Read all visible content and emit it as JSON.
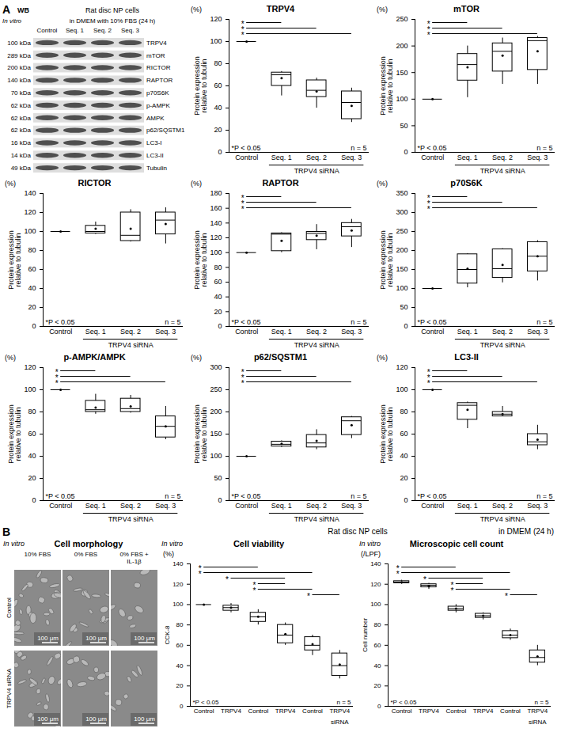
{
  "figure": {
    "panel_A": {
      "letter": "A",
      "western_blot": {
        "label": "WB",
        "header": "Rat disc NP cells",
        "subheader": "in DMEM with 10% FBS (24 h)",
        "context": "In vitro",
        "lanes": [
          "Control",
          "Seq. 1",
          "Seq. 2",
          "Seq. 3"
        ],
        "rows": [
          {
            "kda": "100 kDa",
            "protein": "TRPV4"
          },
          {
            "kda": "289 kDa",
            "protein": "mTOR"
          },
          {
            "kda": "200 kDa",
            "protein": "RICTOR"
          },
          {
            "kda": "140 kDa",
            "protein": "RAPTOR"
          },
          {
            "kda": "70 kDa",
            "protein": "p70S6K"
          },
          {
            "kda": "62 kDa",
            "protein": "p-AMPK"
          },
          {
            "kda": "62 kDa",
            "protein": "AMPK"
          },
          {
            "kda": "62 kDa",
            "protein": "p62/SQSTM1"
          },
          {
            "kda": "16 kDa",
            "protein": "LC3-I"
          },
          {
            "kda": "14 kDa",
            "protein": "LC3-II"
          },
          {
            "kda": "49 kDa",
            "protein": "Tubulin"
          }
        ]
      }
    },
    "panel_B": {
      "letter": "B",
      "header": "Rat disc NP cells",
      "subheader": "in DMEM (24 h)",
      "morphology": {
        "title": "Cell morphology",
        "context": "In vitro",
        "columns": [
          "10% FBS",
          "0% FBS",
          "0% FBS + IL-1β"
        ],
        "rows": [
          "Control",
          "TRPV4 siRNA"
        ],
        "scale_bar": "100 μm"
      }
    }
  },
  "chart_data": [
    {
      "panel": "A",
      "type": "box",
      "title": "TRPV4",
      "ylabel": "Protein expression relative to tubulin",
      "yunit": "(%)",
      "categories": [
        "Control",
        "Seq. 1",
        "Seq. 2",
        "Seq. 3"
      ],
      "group": {
        "label": "TRPV4 siRNA",
        "from": 1,
        "to": 3
      },
      "values": [
        {
          "min": 100,
          "q1": 100,
          "median": 100,
          "q3": 100,
          "max": 100,
          "mean": 100
        },
        {
          "min": 51,
          "q1": 60,
          "median": 70,
          "q3": 72,
          "max": 73,
          "mean": 67
        },
        {
          "min": 40,
          "q1": 50,
          "median": 56,
          "q3": 65,
          "max": 67,
          "mean": 55
        },
        {
          "min": 27,
          "q1": 30,
          "median": 45,
          "q3": 55,
          "max": 58,
          "mean": 42
        }
      ],
      "ylim": [
        0,
        120
      ],
      "yticks": [
        0,
        20,
        40,
        60,
        80,
        100,
        120
      ],
      "comparisons": [
        [
          0,
          1
        ],
        [
          0,
          2
        ],
        [
          0,
          3
        ]
      ],
      "comparison_label": "*",
      "annotations": [
        "*P < 0.05",
        "n = 5"
      ],
      "color": "#ffffff"
    },
    {
      "panel": "A",
      "type": "box",
      "title": "mTOR",
      "ylabel": "Protein expression relative to tubulin",
      "yunit": "(%)",
      "categories": [
        "Control",
        "Seq. 1",
        "Seq. 2",
        "Seq. 3"
      ],
      "group": {
        "label": "TRPV4 siRNA",
        "from": 1,
        "to": 3
      },
      "values": [
        {
          "min": 100,
          "q1": 100,
          "median": 100,
          "q3": 100,
          "max": 100,
          "mean": 100
        },
        {
          "min": 103,
          "q1": 135,
          "median": 165,
          "q3": 185,
          "max": 200,
          "mean": 160
        },
        {
          "min": 128,
          "q1": 152,
          "median": 190,
          "q3": 205,
          "max": 215,
          "mean": 182
        },
        {
          "min": 128,
          "q1": 155,
          "median": 210,
          "q3": 215,
          "max": 218,
          "mean": 190
        }
      ],
      "ylim": [
        0,
        250
      ],
      "yticks": [
        0,
        50,
        100,
        150,
        200,
        250
      ],
      "comparisons": [
        [
          0,
          1
        ],
        [
          0,
          2
        ],
        [
          0,
          3
        ]
      ],
      "comparison_label": "*",
      "annotations": [
        "*P < 0.05",
        "n = 5"
      ],
      "color": "#ffffff"
    },
    {
      "panel": "A",
      "type": "box",
      "title": "RICTOR",
      "ylabel": "Protein expression relative to tubulin",
      "yunit": "(%)",
      "categories": [
        "Control",
        "Seq. 1",
        "Seq. 2",
        "Seq. 3"
      ],
      "group": {
        "label": "TRPV4 siRNA",
        "from": 1,
        "to": 3
      },
      "values": [
        {
          "min": 100,
          "q1": 100,
          "median": 100,
          "q3": 100,
          "max": 100,
          "mean": 100
        },
        {
          "min": 97,
          "q1": 98,
          "median": 100,
          "q3": 106,
          "max": 110,
          "mean": 103
        },
        {
          "min": 89,
          "q1": 90,
          "median": 96,
          "q3": 120,
          "max": 123,
          "mean": 103
        },
        {
          "min": 87,
          "q1": 97,
          "median": 112,
          "q3": 120,
          "max": 125,
          "mean": 108
        }
      ],
      "ylim": [
        0,
        140
      ],
      "yticks": [
        0,
        20,
        40,
        60,
        80,
        100,
        120,
        140
      ],
      "comparisons": [],
      "annotations": [
        "*P < 0.05",
        "n = 5"
      ],
      "color": "#ffffff"
    },
    {
      "panel": "A",
      "type": "box",
      "title": "RAPTOR",
      "ylabel": "Protein expression relative to tubulin",
      "yunit": "(%)",
      "categories": [
        "Control",
        "Seq. 1",
        "Seq. 2",
        "Seq. 3"
      ],
      "group": {
        "label": "TRPV4 siRNA",
        "from": 1,
        "to": 3
      },
      "values": [
        {
          "min": 100,
          "q1": 100,
          "median": 100,
          "q3": 100,
          "max": 100,
          "mean": 100
        },
        {
          "min": 100,
          "q1": 102,
          "median": 125,
          "q3": 126,
          "max": 127,
          "mean": 116
        },
        {
          "min": 104,
          "q1": 117,
          "median": 126,
          "q3": 128,
          "max": 138,
          "mean": 123
        },
        {
          "min": 107,
          "q1": 122,
          "median": 135,
          "q3": 140,
          "max": 145,
          "mean": 130
        }
      ],
      "ylim": [
        0,
        180
      ],
      "yticks": [
        0,
        20,
        40,
        60,
        80,
        100,
        120,
        140,
        160,
        180
      ],
      "comparisons": [
        [
          0,
          1
        ],
        [
          0,
          2
        ],
        [
          0,
          3
        ]
      ],
      "comparison_label": "*",
      "annotations": [
        "*P < 0.05",
        "n = 5"
      ],
      "color": "#ffffff"
    },
    {
      "panel": "A",
      "type": "box",
      "title": "p70S6K",
      "ylabel": "Protein expression relative to tubulin",
      "yunit": "(%)",
      "categories": [
        "Control",
        "Seq. 1",
        "Seq. 2",
        "Seq. 3"
      ],
      "group": {
        "label": "TRPV4 siRNA",
        "from": 1,
        "to": 3
      },
      "values": [
        {
          "min": 100,
          "q1": 100,
          "median": 100,
          "q3": 100,
          "max": 100,
          "mean": 100
        },
        {
          "min": 102,
          "q1": 113,
          "median": 150,
          "q3": 190,
          "max": 192,
          "mean": 152
        },
        {
          "min": 115,
          "q1": 128,
          "median": 152,
          "q3": 203,
          "max": 205,
          "mean": 162
        },
        {
          "min": 120,
          "q1": 145,
          "median": 185,
          "q3": 222,
          "max": 226,
          "mean": 185
        }
      ],
      "ylim": [
        0,
        350
      ],
      "yticks": [
        0,
        50,
        100,
        150,
        200,
        250,
        300,
        350
      ],
      "comparisons": [
        [
          0,
          1
        ],
        [
          0,
          2
        ],
        [
          0,
          3
        ]
      ],
      "comparison_label": "*",
      "annotations": [
        "*P < 0.05",
        "n = 5"
      ],
      "color": "#ffffff"
    },
    {
      "panel": "A",
      "type": "box",
      "title": "p-AMPK/AMPK",
      "ylabel": "Protein expression relative to tubulin",
      "yunit": "(%)",
      "categories": [
        "Control",
        "Seq. 1",
        "Seq. 2",
        "Seq. 3"
      ],
      "group": {
        "label": "TRPV4 siRNA",
        "from": 1,
        "to": 3
      },
      "values": [
        {
          "min": 100,
          "q1": 100,
          "median": 100,
          "q3": 100,
          "max": 100,
          "mean": 100
        },
        {
          "min": 78,
          "q1": 80,
          "median": 82,
          "q3": 90,
          "max": 96,
          "mean": 84
        },
        {
          "min": 79,
          "q1": 80,
          "median": 83,
          "q3": 92,
          "max": 95,
          "mean": 85
        },
        {
          "min": 55,
          "q1": 57,
          "median": 67,
          "q3": 76,
          "max": 85,
          "mean": 67
        }
      ],
      "ylim": [
        0,
        120
      ],
      "yticks": [
        0,
        20,
        40,
        60,
        80,
        100,
        120
      ],
      "comparisons": [
        [
          0,
          1
        ],
        [
          0,
          2
        ],
        [
          0,
          3
        ]
      ],
      "comparison_label": "*",
      "annotations": [
        "*P < 0.05",
        "n = 5"
      ],
      "color": "#ffffff"
    },
    {
      "panel": "A",
      "type": "box",
      "title": "p62/SQSTM1",
      "ylabel": "Protein expression relative to tubulin",
      "yunit": "(%)",
      "categories": [
        "Control",
        "Seq. 1",
        "Seq. 2",
        "Seq. 3"
      ],
      "group": {
        "label": "TRPV4 siRNA",
        "from": 1,
        "to": 3
      },
      "values": [
        {
          "min": 100,
          "q1": 100,
          "median": 100,
          "q3": 100,
          "max": 100,
          "mean": 100
        },
        {
          "min": 120,
          "q1": 122,
          "median": 127,
          "q3": 133,
          "max": 135,
          "mean": 128
        },
        {
          "min": 115,
          "q1": 120,
          "median": 130,
          "q3": 148,
          "max": 160,
          "mean": 135
        },
        {
          "min": 140,
          "q1": 148,
          "median": 180,
          "q3": 188,
          "max": 190,
          "mean": 170
        }
      ],
      "ylim": [
        0,
        300
      ],
      "yticks": [
        0,
        50,
        100,
        150,
        200,
        250,
        300
      ],
      "comparisons": [
        [
          0,
          1
        ],
        [
          0,
          2
        ],
        [
          0,
          3
        ]
      ],
      "comparison_label": "*",
      "annotations": [
        "*P < 0.05",
        "n = 5"
      ],
      "color": "#ffffff"
    },
    {
      "panel": "A",
      "type": "box",
      "title": "LC3-II",
      "ylabel": "Protein expression relative to tubulin",
      "yunit": "(%)",
      "categories": [
        "Control",
        "Seq. 1",
        "Seq. 2",
        "Seq. 3"
      ],
      "group": {
        "label": "TRPV4 siRNA",
        "from": 1,
        "to": 3
      },
      "values": [
        {
          "min": 100,
          "q1": 100,
          "median": 100,
          "q3": 100,
          "max": 100,
          "mean": 100
        },
        {
          "min": 65,
          "q1": 73,
          "median": 86,
          "q3": 88,
          "max": 89,
          "mean": 82
        },
        {
          "min": 76,
          "q1": 76,
          "median": 78,
          "q3": 80,
          "max": 85,
          "mean": 78
        },
        {
          "min": 46,
          "q1": 50,
          "median": 53,
          "q3": 60,
          "max": 68,
          "mean": 55
        }
      ],
      "ylim": [
        0,
        120
      ],
      "yticks": [
        0,
        20,
        40,
        60,
        80,
        100,
        120
      ],
      "comparisons": [
        [
          0,
          1
        ],
        [
          0,
          2
        ],
        [
          0,
          3
        ]
      ],
      "comparison_label": "*",
      "annotations": [
        "*P < 0.05",
        "n = 5"
      ],
      "color": "#ffffff"
    },
    {
      "panel": "B",
      "type": "box",
      "title": "Cell viability",
      "context": "In vitro",
      "ylabel": "CCK-8",
      "yunit": "(%)",
      "categories": [
        "Control",
        "TRPV4",
        "Control",
        "TRPV4",
        "Control",
        "TRPV4"
      ],
      "category_suffix": "siRNA",
      "values": [
        {
          "min": 100,
          "q1": 100,
          "median": 100,
          "q3": 100,
          "max": 100,
          "mean": 100
        },
        {
          "min": 92,
          "q1": 94,
          "median": 97,
          "q3": 99,
          "max": 101,
          "mean": 97
        },
        {
          "min": 80,
          "q1": 83,
          "median": 88,
          "q3": 92,
          "max": 95,
          "mean": 88
        },
        {
          "min": 60,
          "q1": 62,
          "median": 70,
          "q3": 80,
          "max": 82,
          "mean": 71
        },
        {
          "min": 50,
          "q1": 55,
          "median": 60,
          "q3": 68,
          "max": 70,
          "mean": 61
        },
        {
          "min": 27,
          "q1": 30,
          "median": 40,
          "q3": 52,
          "max": 55,
          "mean": 41
        }
      ],
      "ylim": [
        0,
        140
      ],
      "yticks": [
        0,
        20,
        40,
        60,
        80,
        100,
        120,
        140
      ],
      "comparisons": [
        [
          0,
          2
        ],
        [
          0,
          4
        ],
        [
          1,
          3
        ],
        [
          2,
          3
        ],
        [
          2,
          4
        ],
        [
          4,
          5
        ]
      ],
      "comparison_label": "*",
      "annotations": [
        "*P < 0.05",
        "n = 5"
      ],
      "color": "#ffffff"
    },
    {
      "panel": "B",
      "type": "box",
      "title": "Microscopic cell count",
      "context": "In vitro",
      "ylabel": "Cell number",
      "yunit": "(/LPF)",
      "categories": [
        "Control",
        "TRPV4",
        "Control",
        "TRPV4",
        "Control",
        "TRPV4"
      ],
      "category_suffix": "siRNA",
      "values": [
        {
          "min": 120,
          "q1": 121,
          "median": 122,
          "q3": 123,
          "max": 124,
          "mean": 122
        },
        {
          "min": 115,
          "q1": 117,
          "median": 119,
          "q3": 120,
          "max": 121,
          "mean": 118
        },
        {
          "min": 92,
          "q1": 94,
          "median": 96,
          "q3": 98,
          "max": 100,
          "mean": 96
        },
        {
          "min": 85,
          "q1": 87,
          "median": 89,
          "q3": 91,
          "max": 92,
          "mean": 89
        },
        {
          "min": 65,
          "q1": 67,
          "median": 70,
          "q3": 74,
          "max": 76,
          "mean": 70
        },
        {
          "min": 40,
          "q1": 43,
          "median": 48,
          "q3": 55,
          "max": 60,
          "mean": 49
        }
      ],
      "ylim": [
        0,
        140
      ],
      "yticks": [
        0,
        20,
        40,
        60,
        80,
        100,
        120,
        140
      ],
      "comparisons": [
        [
          0,
          2
        ],
        [
          0,
          4
        ],
        [
          1,
          3
        ],
        [
          2,
          3
        ],
        [
          2,
          4
        ],
        [
          4,
          5
        ]
      ],
      "comparison_label": "*",
      "annotations": [
        "*P < 0.05",
        "n = 5"
      ],
      "color": "#ffffff"
    }
  ]
}
